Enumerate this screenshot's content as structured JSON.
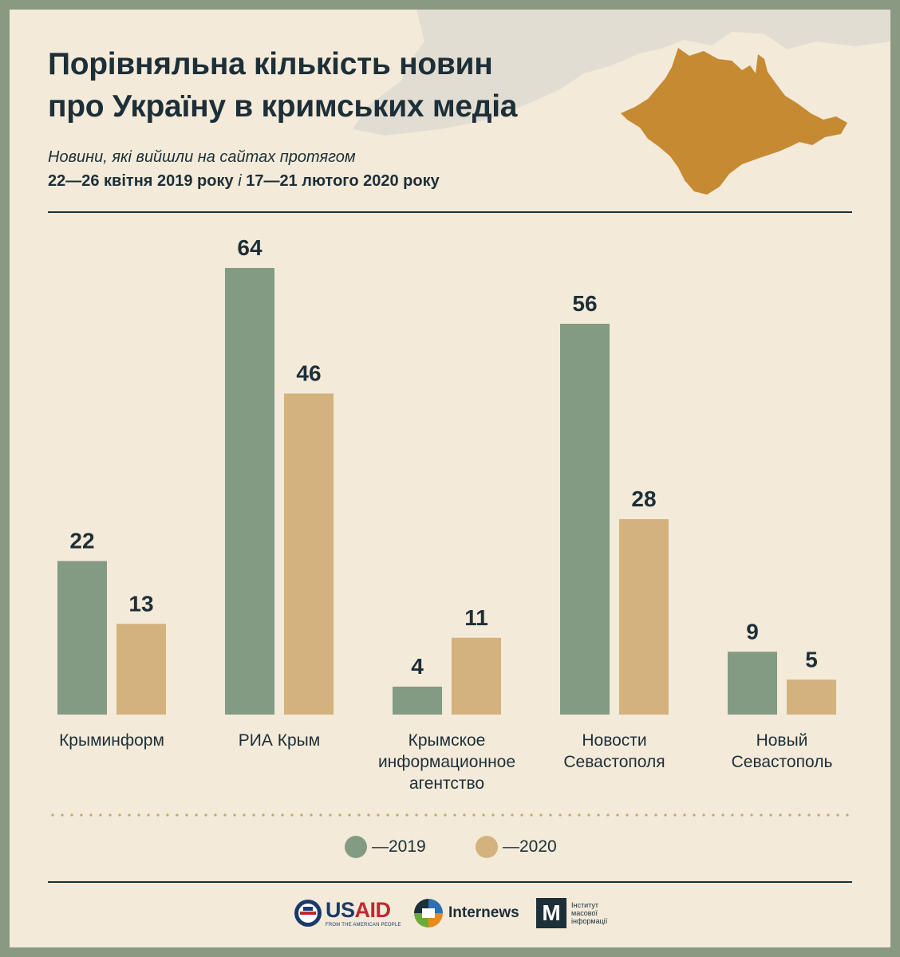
{
  "header": {
    "title_line1": "Порівняльна кількість новин",
    "title_line2": "про Україну в кримських медіа",
    "subtitle_line1": "Новини, які вийшли на сайтах протягом",
    "subtitle_period1": "22—26 квітня 2019 року",
    "subtitle_sep": " і ",
    "subtitle_period2": "17—21 лютого 2020 року"
  },
  "colors": {
    "series_2019": "#839a83",
    "series_2020": "#d3b27d",
    "text": "#1d2f38",
    "map": "#c68a33"
  },
  "chart_data": {
    "type": "bar",
    "title": "Порівняльна кількість новин про Україну в кримських медіа",
    "categories": [
      [
        "Крыминформ"
      ],
      [
        "РИА Крым"
      ],
      [
        "Крымское",
        "информационное",
        "агентство"
      ],
      [
        "Новости",
        "Севастополя"
      ],
      [
        "Новый",
        "Севастополь"
      ]
    ],
    "series": [
      {
        "name": "—2019",
        "values": [
          22,
          64,
          4,
          56,
          9
        ]
      },
      {
        "name": "—2020",
        "values": [
          13,
          46,
          11,
          28,
          5
        ]
      }
    ],
    "ylim": [
      0,
      64
    ],
    "grid": false,
    "legend": "bottom-center"
  },
  "legend": {
    "item_2019": "—2019",
    "item_2020": "—2020"
  },
  "logos": {
    "usaid_us": "US",
    "usaid_aid": "AID",
    "usaid_sub": "FROM THE AMERICAN PEOPLE",
    "internews": "Internews",
    "imi_mark": "М",
    "imi_line1": "Інститут",
    "imi_line2": "масової",
    "imi_line3": "інформації"
  }
}
